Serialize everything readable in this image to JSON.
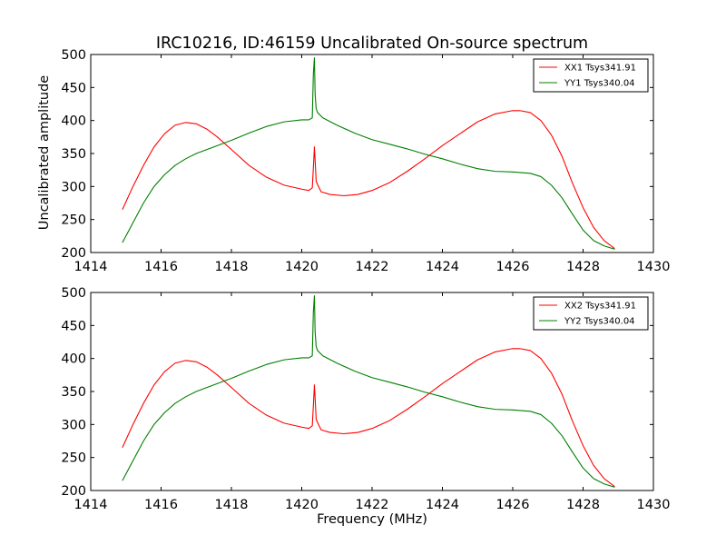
{
  "title": "IRC10216, ID:46159 Uncalibrated On-source spectrum",
  "ylabel": "Uncalibrated amplitude",
  "xlabel": "Frequency (MHz)",
  "colors": {
    "xx": "#ff0000",
    "yy": "#007f00",
    "axes": "#000000",
    "background": "#ffffff"
  },
  "chart_data": [
    {
      "type": "line",
      "xlim": [
        1414,
        1430
      ],
      "ylim": [
        200,
        500
      ],
      "xticks": [
        1414,
        1416,
        1418,
        1420,
        1422,
        1424,
        1426,
        1428,
        1430
      ],
      "yticks": [
        200,
        250,
        300,
        350,
        400,
        450,
        500
      ],
      "ylabel": "Uncalibrated amplitude",
      "xlabel": "",
      "legend": "top-right",
      "grid": false,
      "series": [
        {
          "name": "XX1 Tsys341.91",
          "color": "#ff0000",
          "x": [
            1414.9,
            1415.2,
            1415.5,
            1415.8,
            1416.1,
            1416.4,
            1416.7,
            1417.0,
            1417.3,
            1417.6,
            1418.0,
            1418.5,
            1419.0,
            1419.5,
            1420.0,
            1420.2,
            1420.3,
            1420.33,
            1420.36,
            1420.38,
            1420.41,
            1420.45,
            1420.55,
            1420.8,
            1421.2,
            1421.6,
            1422.0,
            1422.5,
            1423.0,
            1423.5,
            1424.0,
            1424.5,
            1425.0,
            1425.5,
            1426.0,
            1426.2,
            1426.5,
            1426.8,
            1427.1,
            1427.4,
            1427.7,
            1428.0,
            1428.3,
            1428.6,
            1428.9
          ],
          "y": [
            265,
            300,
            332,
            360,
            380,
            393,
            397,
            395,
            387,
            375,
            356,
            332,
            314,
            302,
            296,
            294,
            298,
            328,
            360,
            340,
            308,
            303,
            292,
            288,
            286,
            288,
            294,
            306,
            323,
            342,
            362,
            380,
            398,
            410,
            415,
            415,
            412,
            400,
            378,
            346,
            305,
            268,
            238,
            218,
            206
          ]
        },
        {
          "name": "YY1 Tsys340.04",
          "color": "#007f00",
          "x": [
            1414.9,
            1415.2,
            1415.5,
            1415.8,
            1416.1,
            1416.4,
            1416.7,
            1417.0,
            1417.5,
            1418.0,
            1418.5,
            1419.0,
            1419.5,
            1420.0,
            1420.2,
            1420.3,
            1420.33,
            1420.36,
            1420.38,
            1420.41,
            1420.45,
            1420.6,
            1421.0,
            1421.5,
            1422.0,
            1422.5,
            1423.0,
            1423.5,
            1424.0,
            1424.5,
            1425.0,
            1425.5,
            1426.0,
            1426.5,
            1426.8,
            1427.1,
            1427.4,
            1427.7,
            1428.0,
            1428.3,
            1428.6,
            1428.9
          ],
          "y": [
            215,
            245,
            275,
            300,
            318,
            332,
            342,
            350,
            360,
            370,
            381,
            391,
            398,
            401,
            401,
            404,
            470,
            495,
            440,
            418,
            412,
            404,
            393,
            381,
            371,
            364,
            357,
            349,
            342,
            334,
            327,
            323,
            322,
            320,
            315,
            302,
            283,
            258,
            234,
            218,
            210,
            205
          ]
        }
      ]
    },
    {
      "type": "line",
      "xlim": [
        1414,
        1430
      ],
      "ylim": [
        200,
        500
      ],
      "xticks": [
        1414,
        1416,
        1418,
        1420,
        1422,
        1424,
        1426,
        1428,
        1430
      ],
      "yticks": [
        200,
        250,
        300,
        350,
        400,
        450,
        500
      ],
      "ylabel": "",
      "xlabel": "Frequency (MHz)",
      "legend": "top-right",
      "grid": false,
      "series": [
        {
          "name": "XX2 Tsys341.91",
          "color": "#ff0000",
          "x": [
            1414.9,
            1415.2,
            1415.5,
            1415.8,
            1416.1,
            1416.4,
            1416.7,
            1417.0,
            1417.3,
            1417.6,
            1418.0,
            1418.5,
            1419.0,
            1419.5,
            1420.0,
            1420.2,
            1420.3,
            1420.33,
            1420.36,
            1420.38,
            1420.41,
            1420.45,
            1420.55,
            1420.8,
            1421.2,
            1421.6,
            1422.0,
            1422.5,
            1423.0,
            1423.5,
            1424.0,
            1424.5,
            1425.0,
            1425.5,
            1426.0,
            1426.2,
            1426.5,
            1426.8,
            1427.1,
            1427.4,
            1427.7,
            1428.0,
            1428.3,
            1428.6,
            1428.9
          ],
          "y": [
            265,
            300,
            332,
            360,
            380,
            393,
            397,
            395,
            387,
            375,
            356,
            332,
            314,
            302,
            296,
            294,
            298,
            328,
            360,
            340,
            308,
            303,
            292,
            288,
            286,
            288,
            294,
            306,
            323,
            342,
            362,
            380,
            398,
            410,
            415,
            415,
            412,
            400,
            378,
            346,
            305,
            268,
            238,
            218,
            206
          ]
        },
        {
          "name": "YY2 Tsys340.04",
          "color": "#007f00",
          "x": [
            1414.9,
            1415.2,
            1415.5,
            1415.8,
            1416.1,
            1416.4,
            1416.7,
            1417.0,
            1417.5,
            1418.0,
            1418.5,
            1419.0,
            1419.5,
            1420.0,
            1420.2,
            1420.3,
            1420.33,
            1420.36,
            1420.38,
            1420.41,
            1420.45,
            1420.6,
            1421.0,
            1421.5,
            1422.0,
            1422.5,
            1423.0,
            1423.5,
            1424.0,
            1424.5,
            1425.0,
            1425.5,
            1426.0,
            1426.5,
            1426.8,
            1427.1,
            1427.4,
            1427.7,
            1428.0,
            1428.3,
            1428.6,
            1428.9
          ],
          "y": [
            215,
            245,
            275,
            300,
            318,
            332,
            342,
            350,
            360,
            370,
            381,
            391,
            398,
            401,
            401,
            404,
            470,
            495,
            440,
            418,
            412,
            404,
            393,
            381,
            371,
            364,
            357,
            349,
            342,
            334,
            327,
            323,
            322,
            320,
            315,
            302,
            283,
            258,
            234,
            218,
            210,
            205
          ]
        }
      ]
    }
  ]
}
